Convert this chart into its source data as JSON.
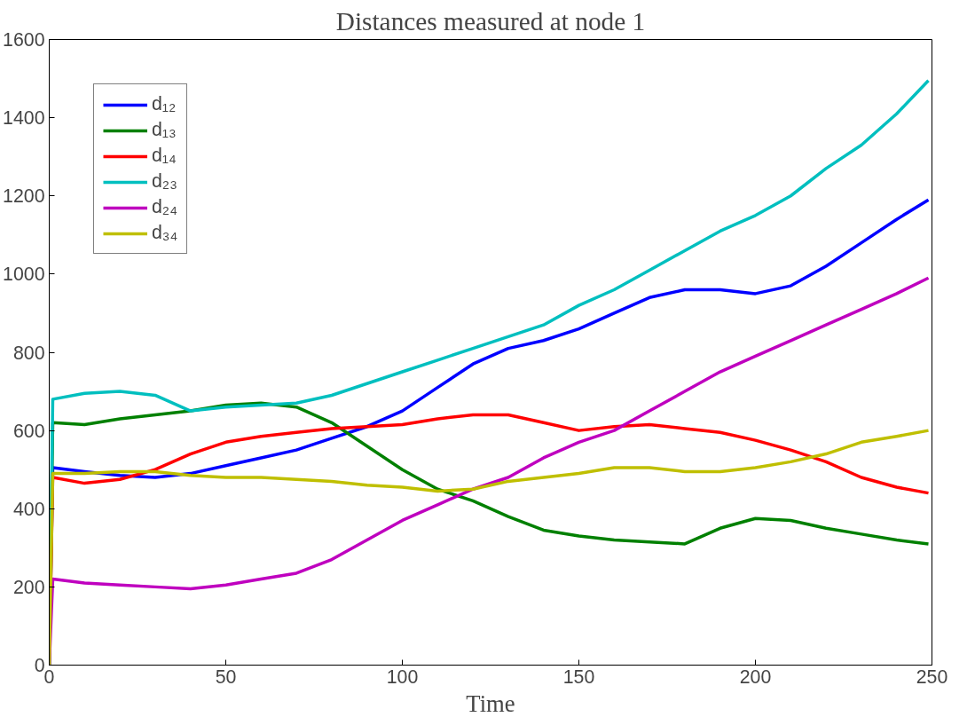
{
  "chart_data": {
    "type": "line",
    "title": "Distances measured at node 1",
    "xlabel": "Time",
    "x": [
      0,
      1,
      10,
      20,
      30,
      40,
      50,
      60,
      70,
      80,
      90,
      100,
      110,
      120,
      130,
      140,
      150,
      160,
      170,
      180,
      190,
      200,
      210,
      220,
      230,
      240,
      249
    ],
    "series": [
      {
        "name": "d₁₂",
        "color": "#0000ff",
        "values": [
          0,
          505,
          495,
          485,
          480,
          490,
          510,
          530,
          550,
          580,
          610,
          650,
          710,
          770,
          810,
          830,
          860,
          900,
          940,
          960,
          960,
          950,
          970,
          1020,
          1080,
          1140,
          1190
        ]
      },
      {
        "name": "d₁₃",
        "color": "#008000",
        "values": [
          0,
          620,
          615,
          630,
          640,
          650,
          665,
          670,
          660,
          620,
          560,
          500,
          450,
          420,
          380,
          345,
          330,
          320,
          315,
          310,
          350,
          375,
          370,
          350,
          335,
          320,
          310
        ]
      },
      {
        "name": "d₁₄",
        "color": "#ff0000",
        "values": [
          0,
          480,
          465,
          475,
          500,
          540,
          570,
          585,
          595,
          605,
          610,
          615,
          630,
          640,
          640,
          620,
          600,
          610,
          615,
          605,
          595,
          575,
          550,
          520,
          480,
          455,
          440
        ]
      },
      {
        "name": "d₂₃",
        "color": "#00bfbf",
        "values": [
          0,
          680,
          695,
          700,
          690,
          650,
          660,
          665,
          670,
          690,
          720,
          750,
          780,
          810,
          840,
          870,
          920,
          960,
          1010,
          1060,
          1110,
          1150,
          1200,
          1270,
          1330,
          1410,
          1495
        ]
      },
      {
        "name": "d₂₄",
        "color": "#bf00bf",
        "values": [
          0,
          220,
          210,
          205,
          200,
          195,
          205,
          220,
          235,
          270,
          320,
          370,
          410,
          450,
          480,
          530,
          570,
          600,
          650,
          700,
          750,
          790,
          830,
          870,
          910,
          950,
          990
        ]
      },
      {
        "name": "d₃₄",
        "color": "#bfbf00",
        "values": [
          0,
          490,
          490,
          495,
          495,
          485,
          480,
          480,
          475,
          470,
          460,
          455,
          445,
          450,
          470,
          480,
          490,
          505,
          505,
          495,
          495,
          505,
          520,
          540,
          570,
          585,
          600
        ]
      }
    ],
    "xlim": [
      0,
      250
    ],
    "xticks": [
      0,
      50,
      100,
      150,
      200,
      250
    ],
    "ylim": [
      0,
      1600
    ],
    "yticks": [
      0,
      200,
      400,
      600,
      800,
      1000,
      1200,
      1400,
      1600
    ],
    "legend": "top left",
    "grid": false
  }
}
